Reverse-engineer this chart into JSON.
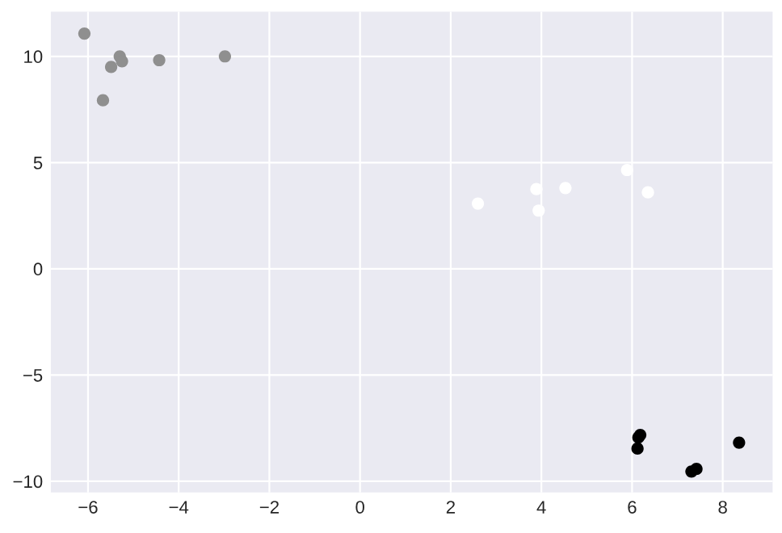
{
  "chart_data": {
    "type": "scatter",
    "marker": "circle",
    "grid": true,
    "xlim": [
      -6.82,
      9.1
    ],
    "ylim": [
      -10.53,
      12.1
    ],
    "xticks": [
      {
        "value": -6,
        "label": "−6"
      },
      {
        "value": -4,
        "label": "−4"
      },
      {
        "value": -2,
        "label": "−2"
      },
      0,
      2,
      4,
      6,
      8
    ],
    "yticks": [
      {
        "value": -10,
        "label": "−10"
      },
      {
        "value": -5,
        "label": "−5"
      },
      0,
      5,
      10
    ],
    "series": [
      {
        "color": "#8f8f8f",
        "x": [
          -6.08,
          -5.67,
          -5.49,
          -5.3,
          -5.25,
          -4.43,
          -2.98
        ],
        "values": [
          11.07,
          7.93,
          9.5,
          10.0,
          9.77,
          9.82,
          10.0
        ]
      },
      {
        "color": "#ffffff",
        "x": [
          2.6,
          3.89,
          3.94,
          4.53,
          5.89,
          6.35
        ],
        "values": [
          3.07,
          3.75,
          2.74,
          3.8,
          4.65,
          3.6
        ]
      },
      {
        "color": "#000000",
        "x": [
          6.12,
          6.18,
          6.14,
          7.31,
          7.42,
          8.36
        ],
        "values": [
          -8.46,
          -7.82,
          -7.94,
          -9.54,
          -9.42,
          -8.18
        ]
      }
    ]
  }
}
